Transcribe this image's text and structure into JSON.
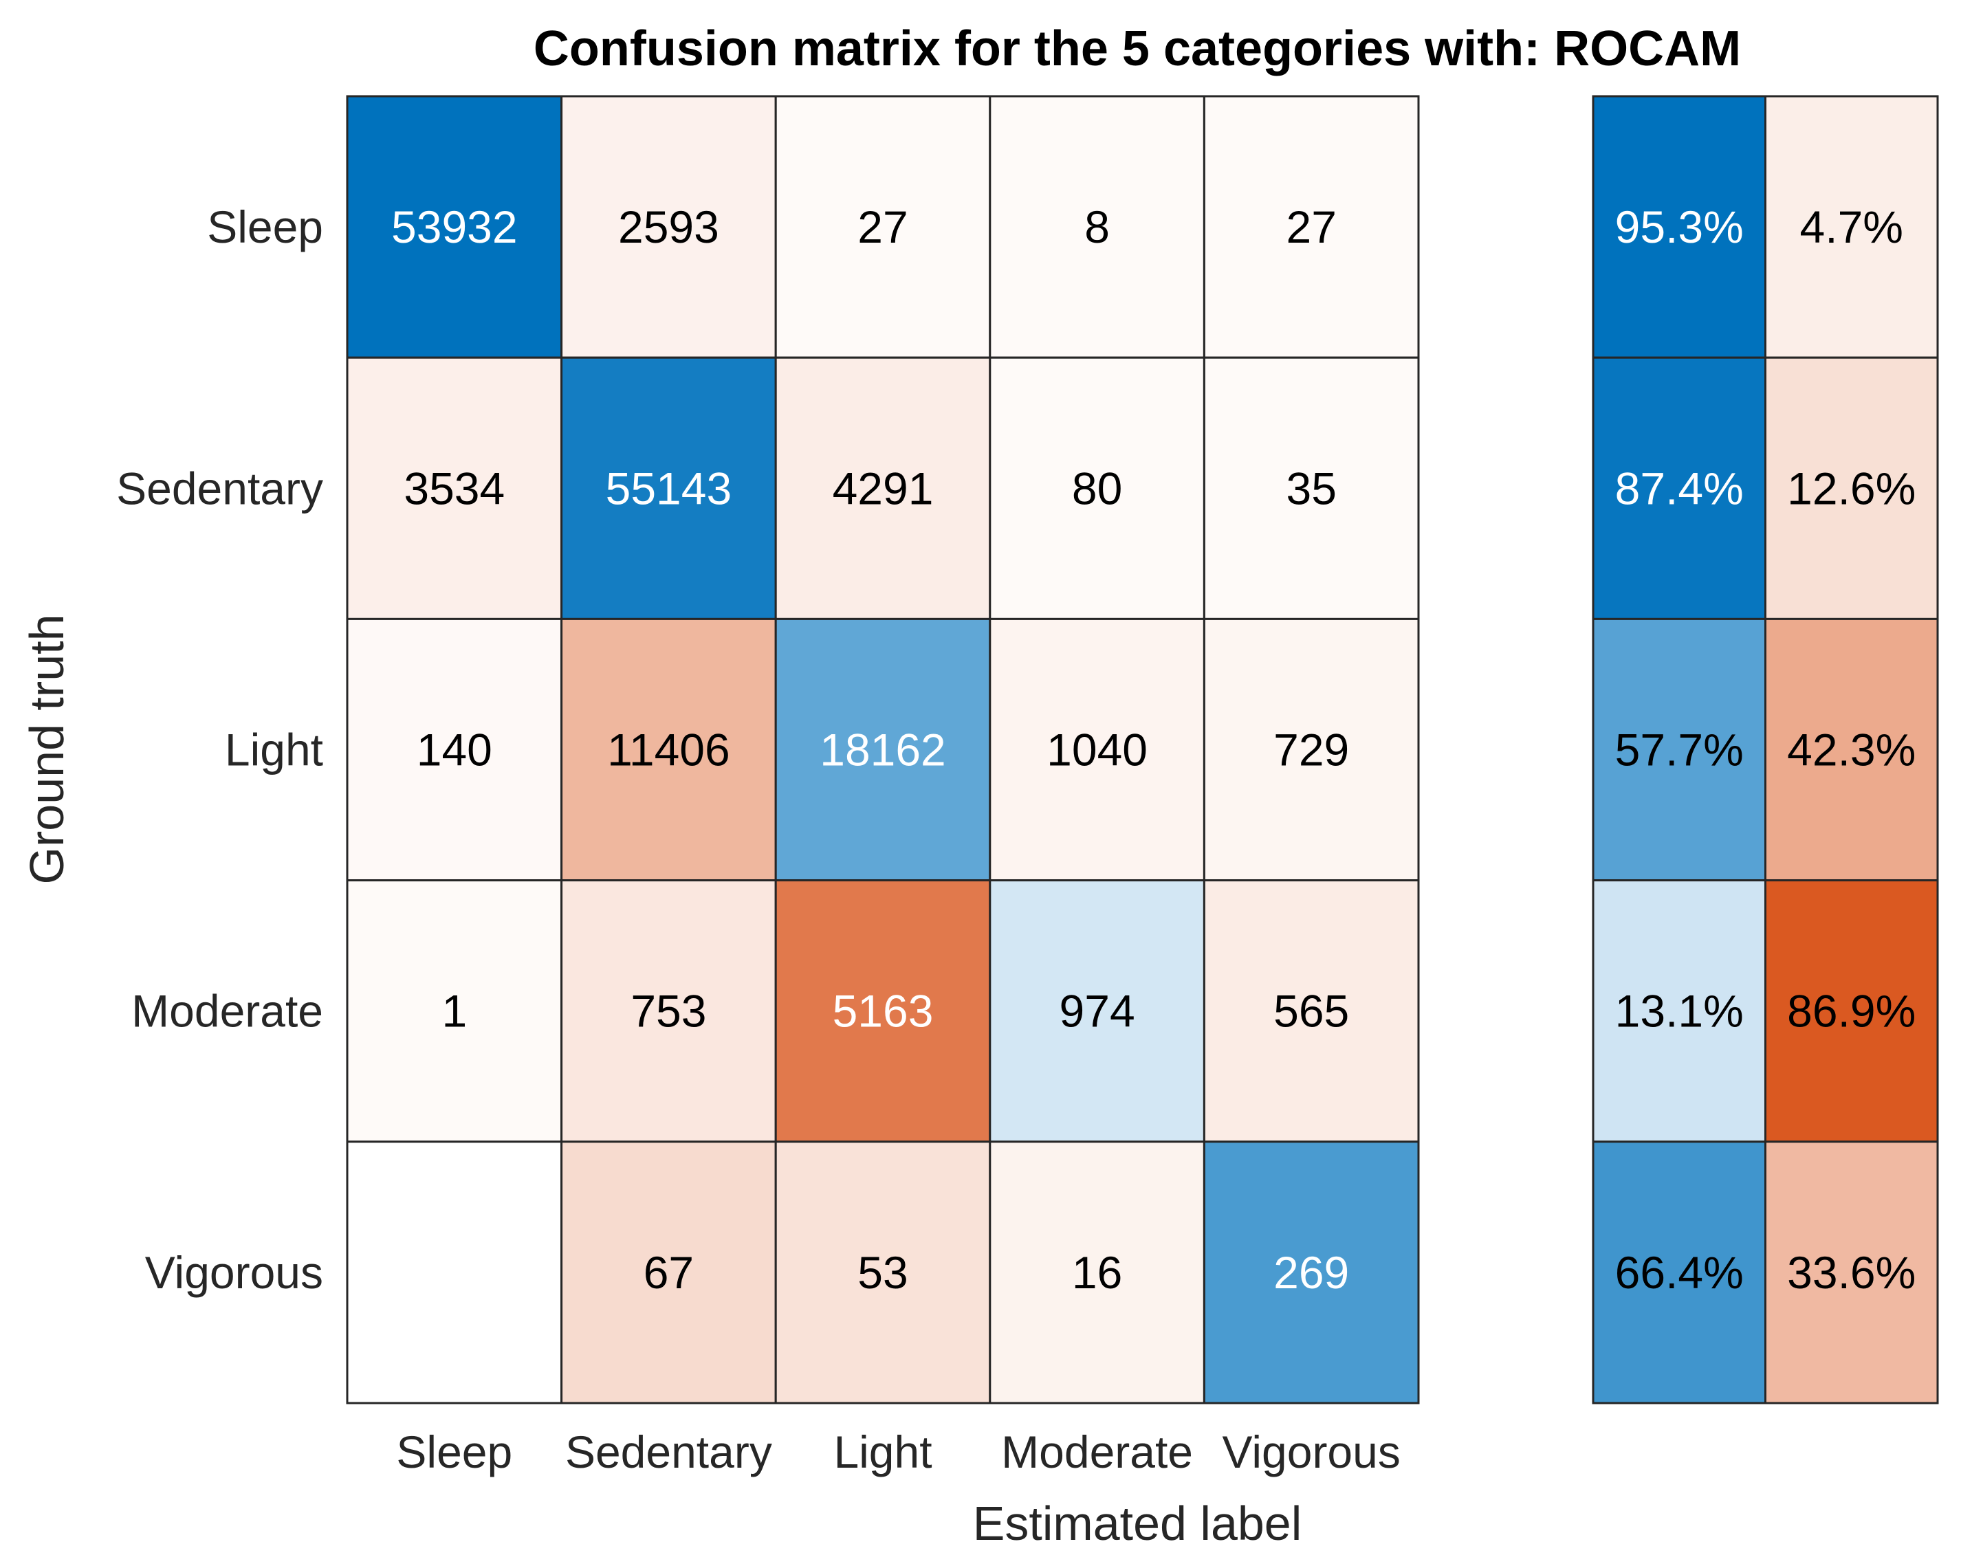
{
  "chart_data": {
    "type": "heatmap",
    "title": "Confusion matrix for the 5 categories with: ROCAM",
    "xlabel": "Estimated label",
    "ylabel": "Ground truth",
    "row_labels": [
      "Sleep",
      "Sedentary",
      "Light",
      "Moderate",
      "Vigorous"
    ],
    "col_labels": [
      "Sleep",
      "Sedentary",
      "Light",
      "Moderate",
      "Vigorous"
    ],
    "matrix": [
      [
        53932,
        2593,
        27,
        8,
        27
      ],
      [
        3534,
        55143,
        4291,
        80,
        35
      ],
      [
        140,
        11406,
        18162,
        1040,
        729
      ],
      [
        1,
        753,
        5163,
        974,
        565
      ],
      [
        null,
        67,
        53,
        16,
        269
      ]
    ],
    "row_summary": {
      "correct": [
        "95.3%",
        "87.4%",
        "57.7%",
        "13.1%",
        "66.4%"
      ],
      "incorrect": [
        "4.7%",
        "12.6%",
        "42.3%",
        "86.9%",
        "33.6%"
      ]
    },
    "colors": {
      "correct": "#0072bd",
      "incorrect": "#d95319",
      "background": "#ffffff",
      "grid": "#262626"
    }
  }
}
